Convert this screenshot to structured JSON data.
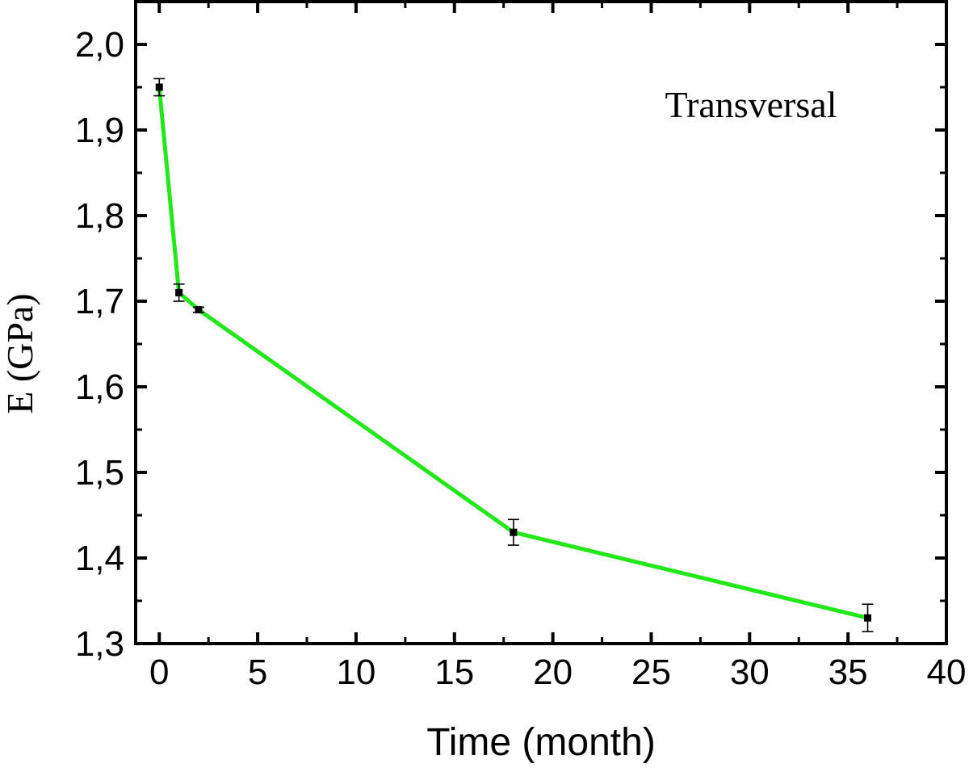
{
  "chart_data": {
    "type": "line",
    "title": "",
    "xlabel": "Time (month)",
    "ylabel": "E (GPa)",
    "xlim": [
      -1.2,
      40
    ],
    "ylim": [
      1.3,
      2.05
    ],
    "x_ticks": [
      0,
      5,
      10,
      15,
      20,
      25,
      30,
      35,
      40
    ],
    "x_tick_labels": [
      "0",
      "5",
      "10",
      "15",
      "20",
      "25",
      "30",
      "35",
      "40"
    ],
    "y_ticks": [
      1.3,
      1.4,
      1.5,
      1.6,
      1.7,
      1.8,
      1.9,
      2.0
    ],
    "y_tick_labels": [
      "1,3",
      "1,4",
      "1,5",
      "1,6",
      "1,7",
      "1,8",
      "1,9",
      "2,0"
    ],
    "annotation": "Transversal",
    "grid": false,
    "line_color": "#22e81a",
    "marker_color": "#000000",
    "series": [
      {
        "x": [
          0,
          1,
          2,
          18,
          36
        ],
        "y": [
          1.95,
          1.71,
          1.69,
          1.43,
          1.33
        ],
        "error": [
          0.01,
          0.01,
          0.003,
          0.015,
          0.016
        ]
      }
    ]
  }
}
